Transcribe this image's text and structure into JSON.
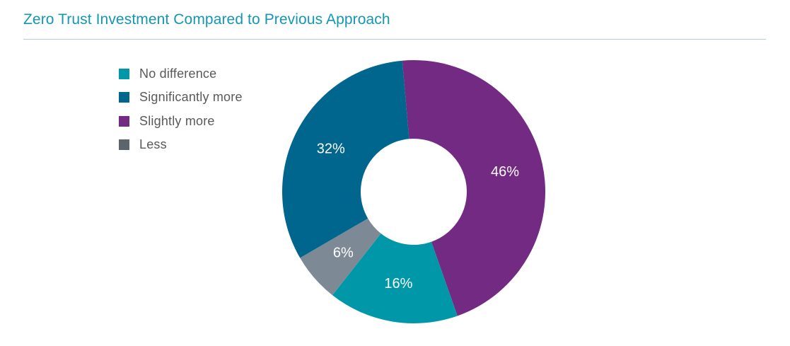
{
  "chart_data": {
    "type": "pie",
    "title": "Zero Trust Investment Compared to Previous Approach",
    "donut": true,
    "legend_position": "top-left",
    "categories": [
      "No difference",
      "Significantly more",
      "Slightly more",
      "Less"
    ],
    "values": [
      16,
      32,
      46,
      6
    ],
    "labels": [
      "16%",
      "32%",
      "46%",
      "6%"
    ],
    "colors": [
      "#0098a8",
      "#00668e",
      "#732a82",
      "#7d8a96"
    ],
    "legend_colors": [
      "#0098a8",
      "#00668e",
      "#732a82",
      "#5d646b"
    ],
    "draw_order": [
      2,
      0,
      3,
      1
    ]
  }
}
